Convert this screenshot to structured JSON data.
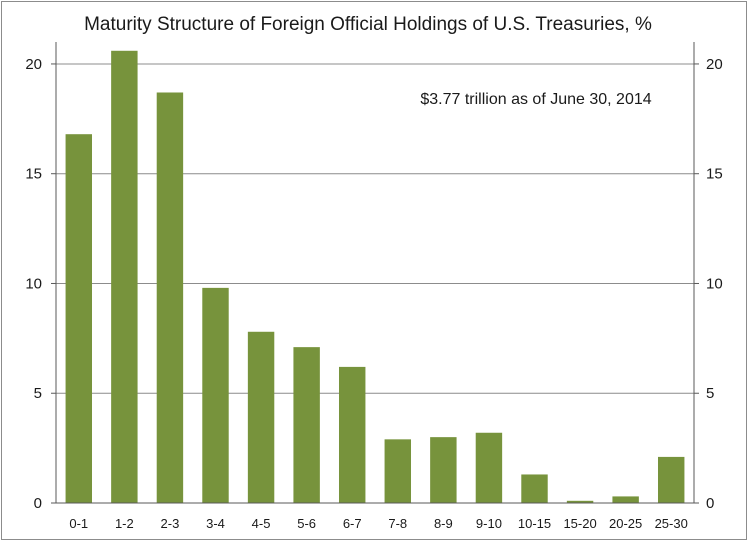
{
  "chart_data": {
    "type": "bar",
    "title": "Maturity Structure of Foreign Official Holdings of U.S. Treasuries, %",
    "annotation": "$3.77 trillion as of June 30, 2014",
    "xlabel": "",
    "ylabel": "",
    "categories": [
      "0-1",
      "1-2",
      "2-3",
      "3-4",
      "4-5",
      "5-6",
      "6-7",
      "7-8",
      "8-9",
      "9-10",
      "10-15",
      "15-20",
      "20-25",
      "25-30"
    ],
    "values": [
      16.8,
      20.6,
      18.7,
      9.8,
      7.8,
      7.1,
      6.2,
      2.9,
      3.0,
      3.2,
      1.3,
      0.1,
      0.3,
      2.1
    ],
    "ylim": [
      0,
      21
    ],
    "yticks": [
      0,
      5,
      10,
      15,
      20
    ],
    "ytick_labels": [
      "0",
      "5",
      "10",
      "15",
      "20"
    ],
    "secondary_yaxis": true,
    "grid": true,
    "bar_color": "#77933c",
    "grid_color": "#8c8c8c"
  }
}
